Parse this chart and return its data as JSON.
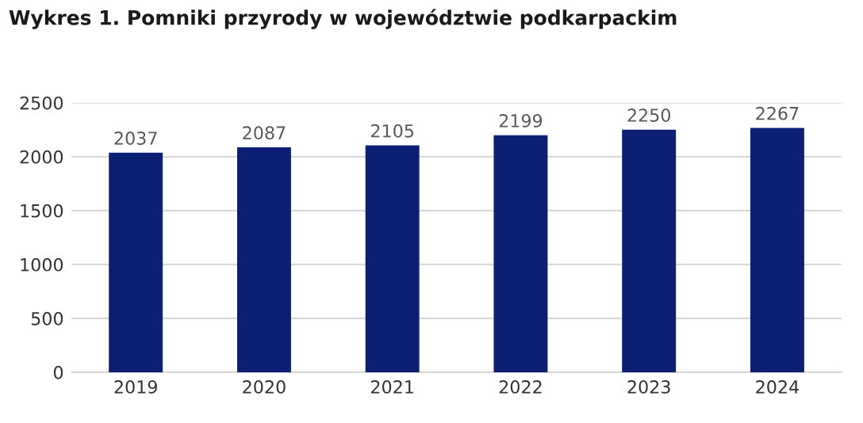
{
  "chart_data": {
    "type": "bar",
    "title": "Wykres 1. Pomniki przyrody w województwie podkarpackim",
    "categories": [
      "2019",
      "2020",
      "2021",
      "2022",
      "2023",
      "2024"
    ],
    "values": [
      2037,
      2087,
      2105,
      2199,
      2250,
      2267
    ],
    "color": "#0b1f73",
    "data_labels": true,
    "ylim": [
      0,
      2500
    ],
    "yticks": [
      0,
      500,
      1000,
      1500,
      2000,
      2500
    ],
    "grid": "y"
  }
}
